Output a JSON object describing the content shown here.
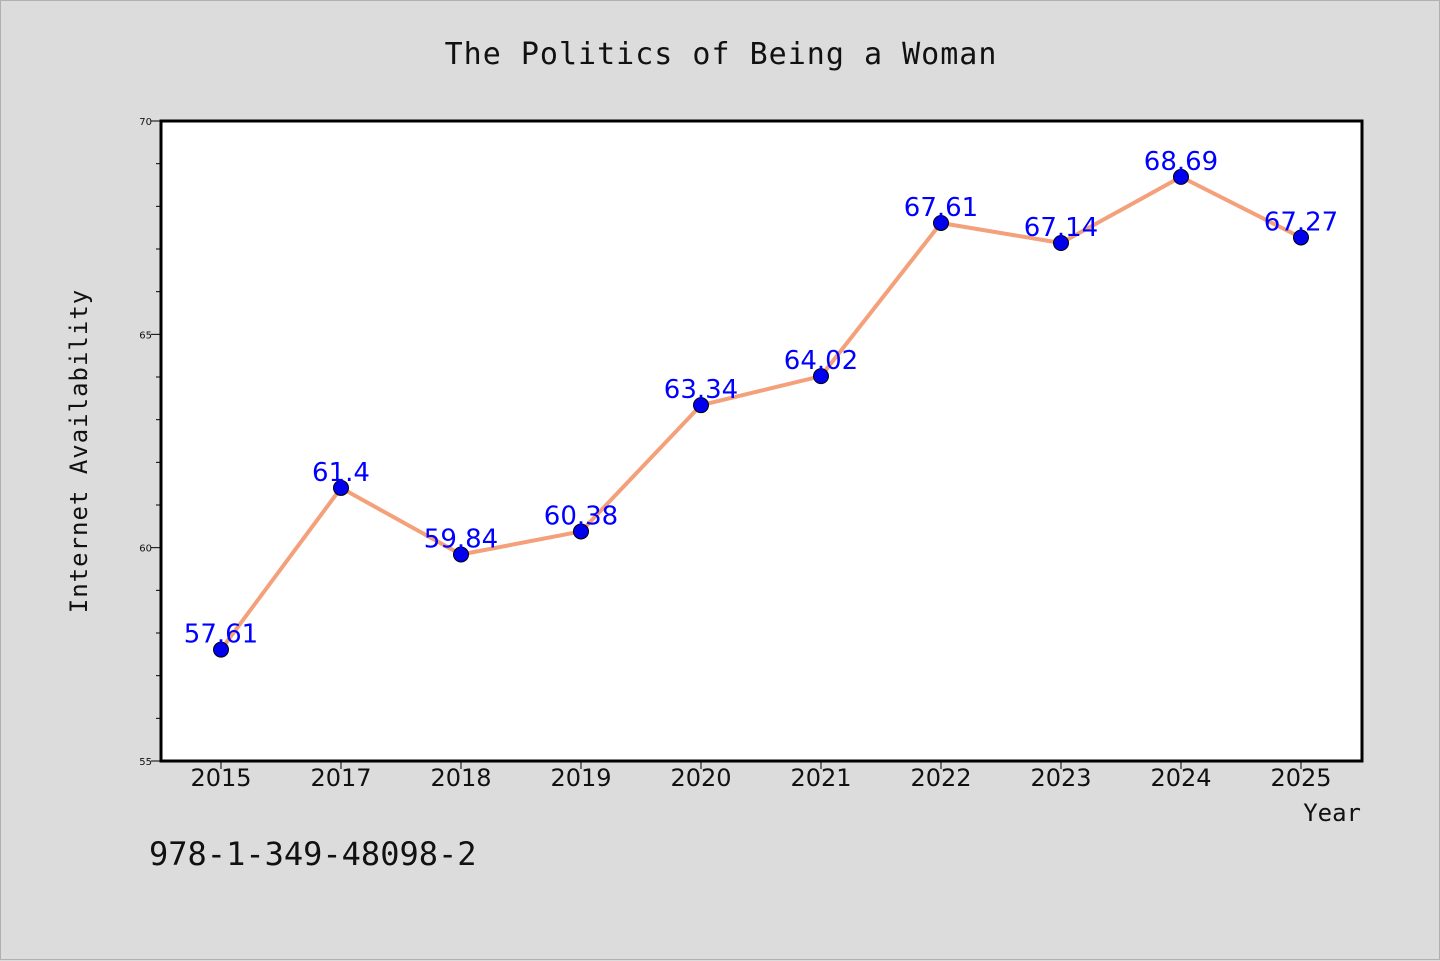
{
  "chart_data": {
    "type": "line",
    "title": "The Politics of Being a Woman",
    "xlabel": "Year",
    "ylabel": "Internet Availability",
    "categories": [
      "2015",
      "2017",
      "2018",
      "2019",
      "2020",
      "2021",
      "2022",
      "2023",
      "2024",
      "2025"
    ],
    "values": [
      57.61,
      61.4,
      59.84,
      60.38,
      63.34,
      64.02,
      67.61,
      67.14,
      68.69,
      67.27
    ],
    "data_labels": [
      "57.61",
      "61.4",
      "59.84",
      "60.38",
      "63.34",
      "64.02",
      "67.61",
      "67.14",
      "68.69",
      "67.27"
    ],
    "ylim": [
      55,
      70
    ],
    "yticks": [
      "55",
      "60",
      "65",
      "70"
    ],
    "grid": false,
    "line_color": "#f4a07a",
    "marker_color": "#0000ee",
    "label_color": "#0000ff",
    "background_color": "#dcdcdc",
    "plot_background": "#ffffff"
  },
  "footer": {
    "isbn": "978-1-349-48098-2"
  }
}
